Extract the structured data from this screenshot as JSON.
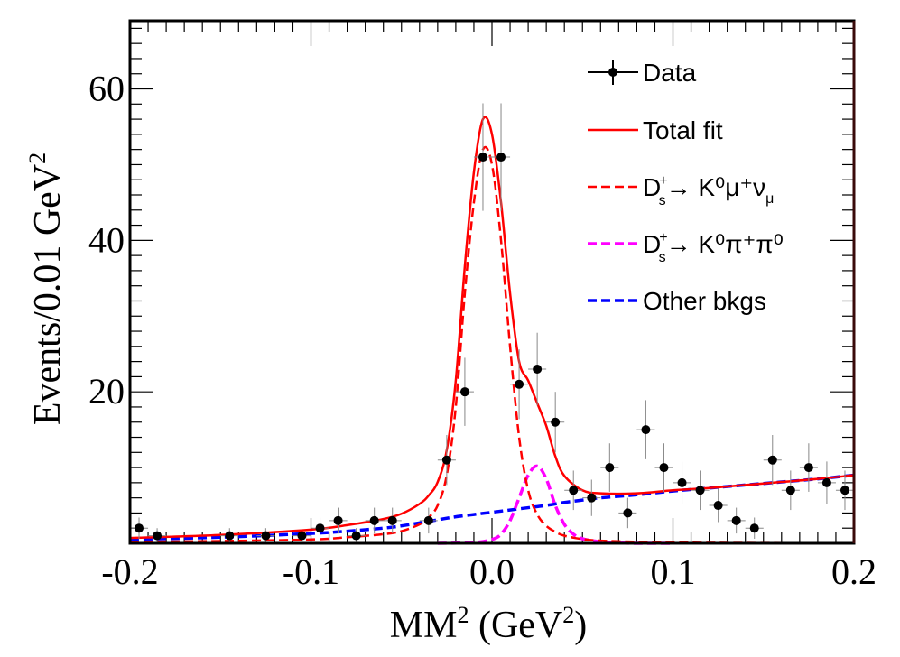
{
  "chart_data": {
    "type": "scatter",
    "title": "",
    "xlabel": "MM",
    "xlabel_sup": "2",
    "xlabel_unit": " (GeV",
    "xlabel_unit_sup": "2",
    "xlabel_close": ")",
    "ylabel": "Events/0.01 GeV",
    "ylabel_sup": "2",
    "xlim": [
      -0.2,
      0.2
    ],
    "ylim": [
      0,
      69
    ],
    "grid": false,
    "legend_position": "top-right",
    "x_ticks": [
      -0.2,
      -0.1,
      0.0,
      0.1,
      0.2
    ],
    "x_tick_labels": [
      "-0.2",
      "-0.1",
      "0.0",
      "0.1",
      "0.2"
    ],
    "y_ticks": [
      20,
      40,
      60
    ],
    "y_tick_labels": [
      "20",
      "40",
      "60"
    ],
    "legend": {
      "data": "Data",
      "total": "Total fit",
      "sig": "D",
      "sig_sup": "+",
      "sig_sub": "s",
      "sig_rest": "→ K⁰μ⁺ν",
      "sig_tail_sub": "μ",
      "peak": "D",
      "peak_sup": "+",
      "peak_sub": "s",
      "peak_rest": "→ K⁰π⁺π⁰",
      "bkg": "Other bkgs"
    },
    "colors": {
      "data": "#000000",
      "total": "#ff0000",
      "signal": "#ff0000",
      "peaking_bkg": "#ff00ff",
      "other_bkg": "#0000ff",
      "frame": "#000000",
      "frame_right": "#3a0a0a"
    },
    "data_points": [
      {
        "x": -0.195,
        "y": 2,
        "err": 1.4
      },
      {
        "x": -0.185,
        "y": 1,
        "err": 1.0
      },
      {
        "x": -0.145,
        "y": 1,
        "err": 1.0
      },
      {
        "x": -0.125,
        "y": 1,
        "err": 1.0
      },
      {
        "x": -0.105,
        "y": 1,
        "err": 1.0
      },
      {
        "x": -0.095,
        "y": 2,
        "err": 1.4
      },
      {
        "x": -0.085,
        "y": 3,
        "err": 1.7
      },
      {
        "x": -0.075,
        "y": 1,
        "err": 1.0
      },
      {
        "x": -0.065,
        "y": 3,
        "err": 1.7
      },
      {
        "x": -0.055,
        "y": 3,
        "err": 1.7
      },
      {
        "x": -0.035,
        "y": 3,
        "err": 1.7
      },
      {
        "x": -0.025,
        "y": 11,
        "err": 3.3
      },
      {
        "x": -0.015,
        "y": 20,
        "err": 4.5
      },
      {
        "x": -0.005,
        "y": 51,
        "err": 7.1
      },
      {
        "x": 0.005,
        "y": 51,
        "err": 7.1
      },
      {
        "x": 0.015,
        "y": 21,
        "err": 4.6
      },
      {
        "x": 0.025,
        "y": 23,
        "err": 4.8
      },
      {
        "x": 0.035,
        "y": 16,
        "err": 4.0
      },
      {
        "x": 0.045,
        "y": 7,
        "err": 2.6
      },
      {
        "x": 0.055,
        "y": 6,
        "err": 2.4
      },
      {
        "x": 0.065,
        "y": 10,
        "err": 3.2
      },
      {
        "x": 0.075,
        "y": 4,
        "err": 2.0
      },
      {
        "x": 0.085,
        "y": 15,
        "err": 3.9
      },
      {
        "x": 0.095,
        "y": 10,
        "err": 3.2
      },
      {
        "x": 0.105,
        "y": 8,
        "err": 2.8
      },
      {
        "x": 0.115,
        "y": 7,
        "err": 2.6
      },
      {
        "x": 0.125,
        "y": 5,
        "err": 2.2
      },
      {
        "x": 0.135,
        "y": 3,
        "err": 1.7
      },
      {
        "x": 0.145,
        "y": 2,
        "err": 1.4
      },
      {
        "x": 0.155,
        "y": 11,
        "err": 3.3
      },
      {
        "x": 0.165,
        "y": 7,
        "err": 2.6
      },
      {
        "x": 0.175,
        "y": 10,
        "err": 3.2
      },
      {
        "x": 0.185,
        "y": 8,
        "err": 2.8
      },
      {
        "x": 0.195,
        "y": 7,
        "err": 2.6
      }
    ],
    "curves": {
      "signal": {
        "x": [
          -0.2,
          -0.15,
          -0.1,
          -0.08,
          -0.06,
          -0.05,
          -0.04,
          -0.035,
          -0.03,
          -0.025,
          -0.02,
          -0.015,
          -0.01,
          -0.005,
          0.0,
          0.005,
          0.01,
          0.015,
          0.02,
          0.025,
          0.03,
          0.035,
          0.04,
          0.05,
          0.06,
          0.08,
          0.1,
          0.2
        ],
        "y": [
          0.2,
          0.3,
          0.5,
          0.8,
          1.2,
          1.6,
          2.5,
          3.4,
          5.0,
          9.0,
          18.0,
          33.0,
          45.0,
          52.0,
          50.0,
          40.0,
          26.0,
          14.0,
          7.0,
          3.8,
          2.3,
          1.5,
          1.0,
          0.55,
          0.35,
          0.2,
          0.1,
          0.0
        ]
      },
      "peaking": {
        "x": [
          -0.03,
          -0.01,
          0.0,
          0.005,
          0.01,
          0.015,
          0.02,
          0.025,
          0.03,
          0.035,
          0.04,
          0.045,
          0.05,
          0.06,
          0.07,
          0.08,
          0.1
        ],
        "y": [
          0.0,
          0.1,
          0.5,
          1.2,
          3.0,
          6.0,
          9.0,
          10.2,
          8.5,
          5.0,
          2.5,
          1.2,
          0.6,
          0.2,
          0.05,
          0.0,
          0.0
        ]
      },
      "other": {
        "x": [
          -0.2,
          -0.15,
          -0.1,
          -0.08,
          -0.06,
          -0.05,
          -0.04,
          -0.03,
          -0.02,
          -0.01,
          0.0,
          0.01,
          0.02,
          0.03,
          0.04,
          0.05,
          0.06,
          0.08,
          0.1,
          0.12,
          0.14,
          0.16,
          0.18,
          0.2
        ],
        "y": [
          0.5,
          0.8,
          1.3,
          1.6,
          2.0,
          2.3,
          2.7,
          3.1,
          3.5,
          3.8,
          4.1,
          4.4,
          4.7,
          5.0,
          5.4,
          5.7,
          6.0,
          6.4,
          6.9,
          7.3,
          7.7,
          8.1,
          8.5,
          9.0
        ]
      },
      "total": {
        "x": [
          -0.2,
          -0.15,
          -0.1,
          -0.08,
          -0.06,
          -0.05,
          -0.04,
          -0.035,
          -0.03,
          -0.025,
          -0.02,
          -0.015,
          -0.01,
          -0.005,
          0.0,
          0.005,
          0.01,
          0.015,
          0.02,
          0.025,
          0.03,
          0.035,
          0.04,
          0.05,
          0.06,
          0.08,
          0.1,
          0.12,
          0.14,
          0.16,
          0.18,
          0.2
        ],
        "y": [
          0.7,
          1.1,
          1.8,
          2.4,
          3.2,
          3.9,
          5.2,
          6.3,
          8.1,
          12.3,
          21.5,
          36.6,
          49.0,
          56.0,
          54.0,
          45.0,
          33.0,
          24.0,
          21.5,
          18.5,
          15.5,
          11.5,
          8.9,
          7.0,
          6.6,
          6.6,
          7.0,
          7.3,
          7.7,
          8.1,
          8.5,
          9.0
        ]
      }
    }
  }
}
